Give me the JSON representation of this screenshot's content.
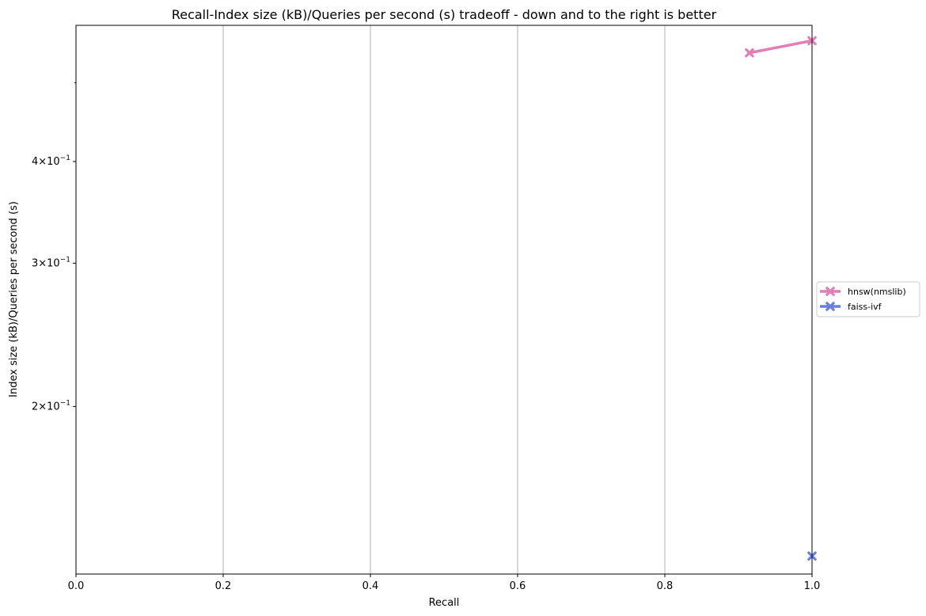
{
  "chart_data": {
    "type": "line",
    "title": "Recall-Index size (kB)/Queries per second (s) tradeoff - down and to the right is better",
    "xlabel": "Recall",
    "ylabel": "Index size (kB)/Queries per second (s)",
    "xlim": [
      0.0,
      1.0
    ],
    "ylim": [
      0.1245,
      0.588
    ],
    "yscale": "log",
    "x_ticks": [
      {
        "value": 0.0,
        "label": "0.0"
      },
      {
        "value": 0.2,
        "label": "0.2"
      },
      {
        "value": 0.4,
        "label": "0.4"
      },
      {
        "value": 0.6,
        "label": "0.6"
      },
      {
        "value": 0.8,
        "label": "0.8"
      },
      {
        "value": 1.0,
        "label": "1.0"
      }
    ],
    "y_ticks": [
      {
        "value": 0.2,
        "base": "2×10",
        "exp": "−1"
      },
      {
        "value": 0.3,
        "base": "3×10",
        "exp": "−1"
      },
      {
        "value": 0.4,
        "base": "4×10",
        "exp": "−1"
      }
    ],
    "y_minor_ticks": [
      0.5,
      0.6
    ],
    "grid": "x-major",
    "legend_position": "outside-right",
    "series": [
      {
        "name": "hnsw(nmslib)",
        "color": "#e07fb5",
        "marker": "X",
        "x": [
          0.915,
          1.0
        ],
        "y": [
          0.544,
          0.563
        ]
      },
      {
        "name": "faiss-ivf",
        "color": "#6a7fdb",
        "marker": "X",
        "x": [
          1.0
        ],
        "y": [
          0.131
        ]
      }
    ]
  }
}
